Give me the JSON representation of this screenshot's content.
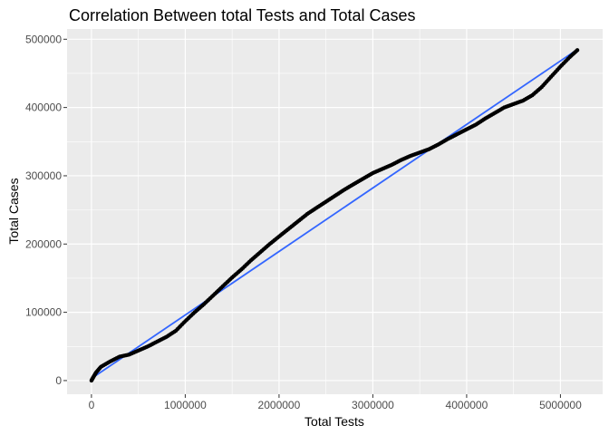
{
  "chart_data": {
    "type": "scatter",
    "title": "Correlation Between total Tests and Total Cases",
    "xlabel": "Total Tests",
    "ylabel": "Total Cases",
    "xlim": [
      -260000,
      5450000
    ],
    "ylim": [
      -20000,
      515000
    ],
    "x_ticks": [
      0,
      1000000,
      2000000,
      3000000,
      4000000,
      5000000
    ],
    "x_tick_labels": [
      "0",
      "1000000",
      "2000000",
      "3000000",
      "4000000",
      "5000000"
    ],
    "y_ticks": [
      0,
      100000,
      200000,
      300000,
      400000,
      500000
    ],
    "y_tick_labels": [
      "0",
      "100000",
      "200000",
      "300000",
      "400000",
      "500000"
    ],
    "grid": true,
    "legend": "none",
    "colors": {
      "panel_background": "#ebebeb",
      "grid_line": "#ffffff",
      "point": "#000000",
      "trend_line": "#3366ff"
    },
    "trend_line": {
      "x": [
        0,
        5180000
      ],
      "y": [
        3000,
        485000
      ]
    },
    "series": [
      {
        "x": [
          0,
          20000,
          50000,
          100000,
          200000,
          300000,
          400000,
          500000,
          600000,
          700000,
          800000,
          900000,
          1000000,
          1100000,
          1200000,
          1300000,
          1400000,
          1500000,
          1600000,
          1700000,
          1800000,
          1900000,
          2000000,
          2100000,
          2200000,
          2300000,
          2400000,
          2500000,
          2600000,
          2700000,
          2800000,
          2900000,
          3000000,
          3100000,
          3200000,
          3300000,
          3400000,
          3500000,
          3600000,
          3700000,
          3800000,
          3900000,
          4000000,
          4100000,
          4200000,
          4300000,
          4400000,
          4500000,
          4600000,
          4700000,
          4800000,
          4900000,
          5000000,
          5100000,
          5180000
        ],
        "y": [
          0,
          5000,
          12000,
          20000,
          28000,
          35000,
          38000,
          44000,
          50000,
          57000,
          64000,
          73000,
          87000,
          100000,
          112000,
          125000,
          138000,
          151000,
          163000,
          176000,
          188000,
          200000,
          211000,
          222000,
          233000,
          244000,
          253000,
          262000,
          271000,
          280000,
          288000,
          296000,
          304000,
          310000,
          316000,
          323000,
          329000,
          334000,
          339000,
          346000,
          354000,
          361000,
          368000,
          375000,
          384000,
          392000,
          400000,
          405000,
          410000,
          418000,
          430000,
          445000,
          460000,
          474000,
          484000
        ]
      }
    ]
  }
}
